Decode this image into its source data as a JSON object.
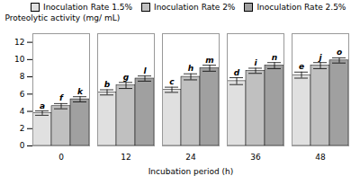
{
  "chart_data": {
    "type": "bar",
    "xlabel": "Incubation period (h)",
    "ylabel": "Proteolytic activity (mg/ mL)",
    "categories": [
      0,
      12,
      24,
      36,
      48
    ],
    "series": [
      {
        "name": "Inoculation Rate 1.5%",
        "color": "#e0e0e0",
        "values": [
          3.8,
          6.2,
          6.5,
          7.5,
          8.2
        ],
        "errors": [
          0.25,
          0.3,
          0.3,
          0.4,
          0.35
        ],
        "labels": [
          "a",
          "b",
          "c",
          "d",
          "e"
        ]
      },
      {
        "name": "Inoculation Rate 2%",
        "color": "#c0c0c0",
        "values": [
          4.6,
          7.0,
          8.0,
          8.7,
          9.3
        ],
        "errors": [
          0.3,
          0.35,
          0.35,
          0.3,
          0.35
        ],
        "labels": [
          "f",
          "g",
          "h",
          "i",
          "j"
        ]
      },
      {
        "name": "Inoculation Rate 2.5%",
        "color": "#a0a0a0",
        "values": [
          5.4,
          7.8,
          9.0,
          9.3,
          9.9
        ],
        "errors": [
          0.3,
          0.3,
          0.35,
          0.35,
          0.3
        ],
        "labels": [
          "k",
          "l",
          "m",
          "n",
          "o"
        ]
      }
    ],
    "ylim": [
      0,
      13
    ],
    "yticks": [
      0,
      2,
      4,
      6,
      8,
      10,
      12
    ],
    "legend": "upper left",
    "grid": false
  }
}
